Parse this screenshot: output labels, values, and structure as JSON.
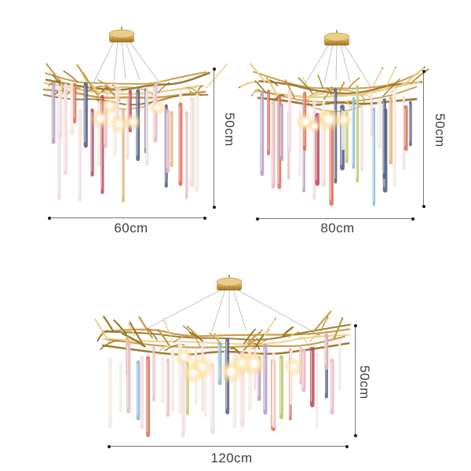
{
  "page": {
    "background": "#ffffff"
  },
  "figures": [
    {
      "id": "chandelier-60",
      "width_label": "60cm",
      "height_label": "50cm"
    },
    {
      "id": "chandelier-80",
      "width_label": "80cm",
      "height_label": "50cm"
    },
    {
      "id": "chandelier-120",
      "width_label": "120cm",
      "height_label": "50cm"
    }
  ],
  "style": {
    "dimension_line_color": "#787878",
    "dimension_dot_color": "#1c1c1c",
    "label_color": "#3f3f3f",
    "cable_color": "#b9b9b9",
    "glow_color": "#ffd98f",
    "gold": {
      "light": "#e8cd8a",
      "main": "#c79a45",
      "dark": "#9c7426"
    },
    "glass_palette": [
      {
        "hex": "#f3dbdf",
        "w": 3
      },
      {
        "hex": "#eab9c0",
        "w": 3
      },
      {
        "hex": "#f2ebe4",
        "w": 3
      },
      {
        "hex": "#dd6f55",
        "w": 2
      },
      {
        "hex": "#b84a5c",
        "w": 1
      },
      {
        "hex": "#515d85",
        "w": 2
      },
      {
        "hex": "#b59cc6",
        "w": 1.5
      },
      {
        "hex": "#dfb074",
        "w": 1
      },
      {
        "hex": "#8cb9d9",
        "w": 1
      },
      {
        "hex": "#b9c86a",
        "w": 0.6
      }
    ]
  }
}
